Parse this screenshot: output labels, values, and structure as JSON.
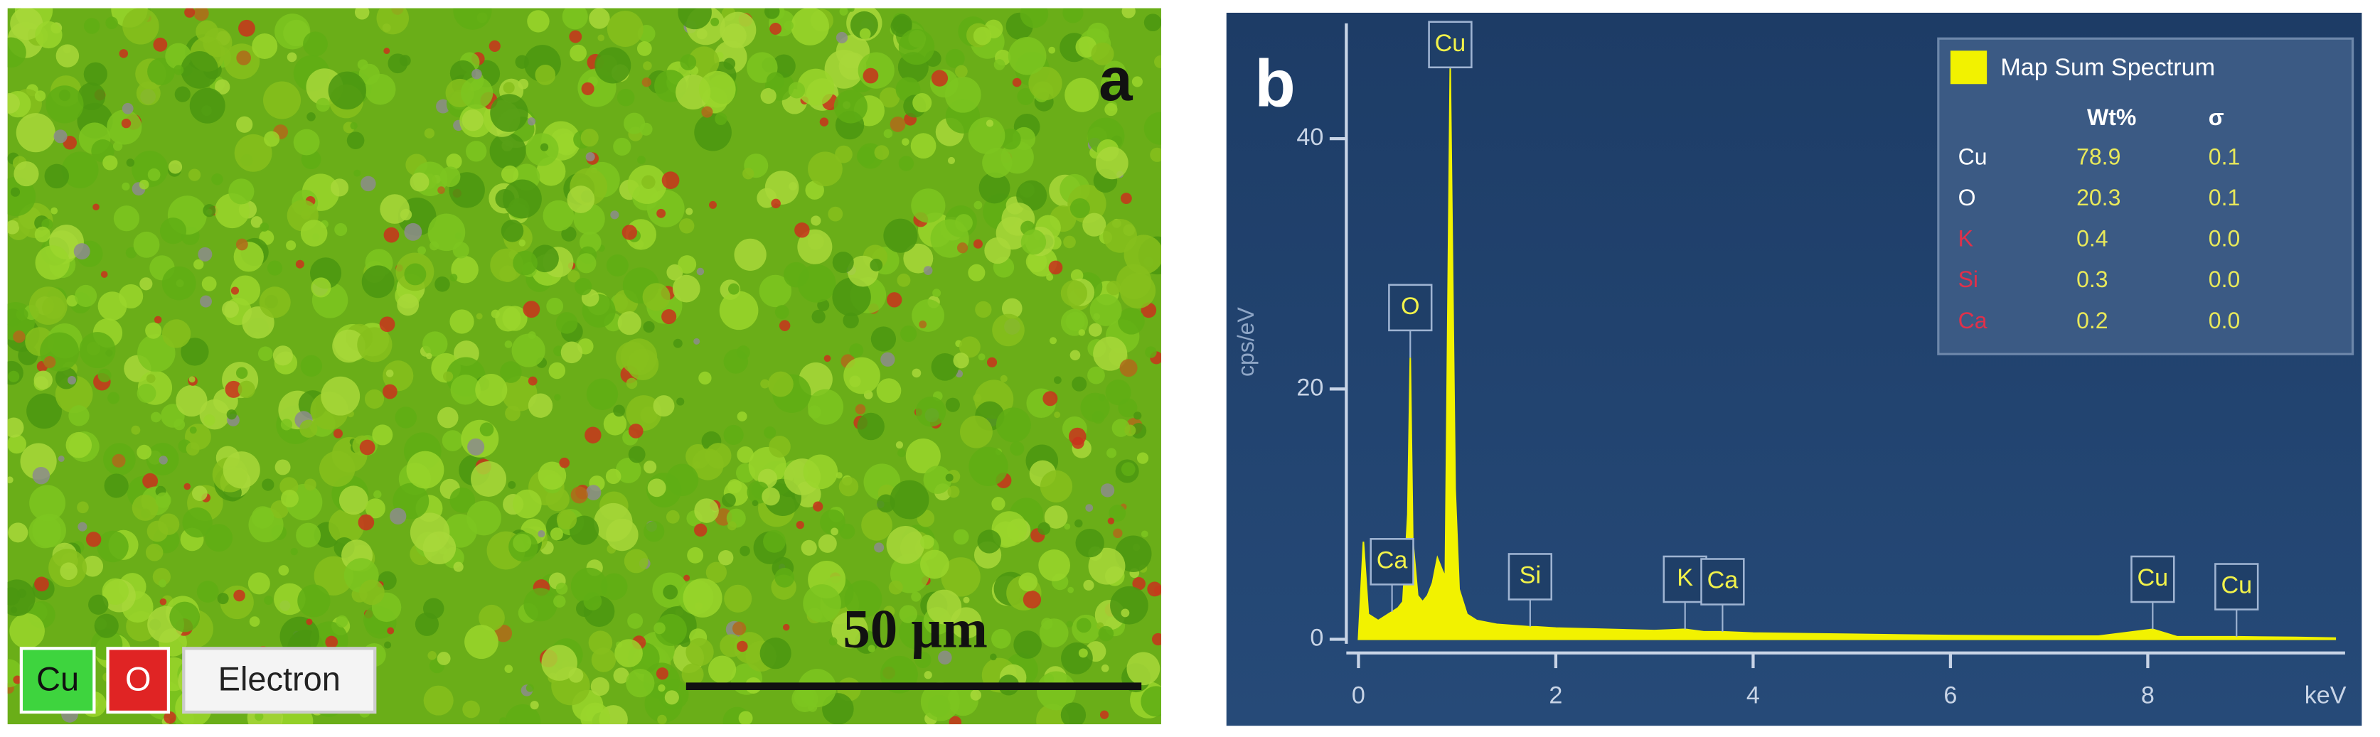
{
  "panel_a": {
    "label": "a",
    "scale_bar": "50 μm",
    "legend": [
      "Cu",
      "O",
      "Electron"
    ]
  },
  "chart_data": {
    "type": "area",
    "label": "b",
    "x_label": "keV",
    "y_label": "cps/eV",
    "x": [
      0,
      0.05,
      0.1,
      0.2,
      0.3,
      0.4,
      0.45,
      0.5,
      0.525,
      0.55,
      0.6,
      0.65,
      0.7,
      0.75,
      0.8,
      0.85,
      0.88,
      0.93,
      0.98,
      1.02,
      1.1,
      1.2,
      1.4,
      1.74,
      1.8,
      2.0,
      2.5,
      3.0,
      3.31,
      3.5,
      3.69,
      4.0,
      5.0,
      6.0,
      7.0,
      7.5,
      8.05,
      8.3,
      8.9,
      9.5,
      9.9
    ],
    "series": [
      {
        "name": "Map Sum Spectrum",
        "color": "#f2f200",
        "values": [
          0,
          7.8,
          2,
          1.5,
          2,
          2.5,
          3,
          10,
          22.5,
          8,
          3.5,
          3,
          3.5,
          4.5,
          6.5,
          5.5,
          5,
          45.6,
          12,
          4,
          2,
          1.5,
          1.2,
          1,
          1,
          0.9,
          0.8,
          0.7,
          0.8,
          0.6,
          0.6,
          0.5,
          0.4,
          0.3,
          0.25,
          0.25,
          0.8,
          0.2,
          0.2,
          0.15,
          0.1
        ]
      }
    ],
    "xlim": [
      0,
      9.9
    ],
    "xticks": [
      0,
      2,
      4,
      6,
      8
    ],
    "ylim": [
      0,
      50
    ],
    "yticks": [
      0,
      20,
      40
    ],
    "annotations": [
      {
        "text": "Ca",
        "x": 0.34
      },
      {
        "text": "O",
        "x": 0.525
      },
      {
        "text": "Cu",
        "x": 0.93
      },
      {
        "text": "Si",
        "x": 1.74
      },
      {
        "text": "K",
        "x": 3.31
      },
      {
        "text": "Ca",
        "x": 3.69
      },
      {
        "text": "Cu",
        "x": 8.05
      },
      {
        "text": "Cu",
        "x": 8.9
      }
    ],
    "table": {
      "columns": [
        "Wt%",
        "σ"
      ],
      "rows": [
        {
          "element": "Cu",
          "color": "#ffffff",
          "wt": "78.9",
          "sigma": "0.1"
        },
        {
          "element": "O",
          "color": "#ffffff",
          "wt": "20.3",
          "sigma": "0.1"
        },
        {
          "element": "K",
          "color": "#e0304a",
          "wt": "0.4",
          "sigma": "0.0"
        },
        {
          "element": "Si",
          "color": "#e0304a",
          "wt": "0.3",
          "sigma": "0.0"
        },
        {
          "element": "Ca",
          "color": "#e0304a",
          "wt": "0.2",
          "sigma": "0.0"
        }
      ]
    }
  }
}
